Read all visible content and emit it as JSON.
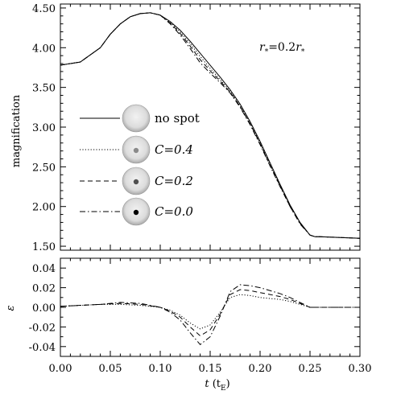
{
  "chart_data": [
    {
      "type": "line",
      "panel": "top",
      "ylabel": "magnification",
      "xlim": [
        0.0,
        0.3
      ],
      "ylim": [
        1.45,
        4.55
      ],
      "yticks": [
        "1.50",
        "2.00",
        "2.50",
        "3.00",
        "3.50",
        "4.00",
        "4.50"
      ],
      "annotation": {
        "r": "r",
        "sub": "*",
        "eq": "=0.2",
        "r2": "r",
        "sub2": "*"
      },
      "legend_placement": "left-middle",
      "legend": [
        {
          "label": "no spot",
          "style": "solid",
          "spot_color": "none"
        },
        {
          "label": "C=0.4",
          "style": "dotted",
          "spot_color": "#8a8a8a"
        },
        {
          "label": "C=0.2",
          "style": "dashed",
          "spot_color": "#505050"
        },
        {
          "label": "C=0.0",
          "style": "dashdot",
          "spot_color": "#000000"
        }
      ],
      "series": [
        {
          "style": "solid",
          "x": [
            0.0,
            0.02,
            0.04,
            0.05,
            0.06,
            0.07,
            0.08,
            0.09,
            0.1,
            0.11,
            0.12,
            0.13,
            0.14,
            0.15,
            0.16,
            0.17,
            0.18,
            0.19,
            0.2,
            0.21,
            0.22,
            0.23,
            0.24,
            0.25,
            0.255,
            0.26,
            0.28,
            0.3
          ],
          "y": [
            3.78,
            3.82,
            4.0,
            4.17,
            4.3,
            4.39,
            4.43,
            4.44,
            4.41,
            4.33,
            4.22,
            4.08,
            3.93,
            3.78,
            3.63,
            3.47,
            3.29,
            3.07,
            2.82,
            2.55,
            2.28,
            2.02,
            1.8,
            1.64,
            1.62,
            1.62,
            1.61,
            1.6
          ]
        },
        {
          "style": "dotted",
          "x": [
            0.0,
            0.02,
            0.04,
            0.05,
            0.06,
            0.07,
            0.08,
            0.09,
            0.1,
            0.11,
            0.12,
            0.13,
            0.14,
            0.15,
            0.16,
            0.17,
            0.18,
            0.19,
            0.2,
            0.21,
            0.22,
            0.23,
            0.24,
            0.25,
            0.255,
            0.26,
            0.28,
            0.3
          ],
          "y": [
            3.78,
            3.82,
            4.0,
            4.17,
            4.3,
            4.39,
            4.43,
            4.44,
            4.41,
            4.32,
            4.2,
            4.05,
            3.89,
            3.74,
            3.6,
            3.45,
            3.27,
            3.05,
            2.8,
            2.53,
            2.27,
            2.01,
            1.79,
            1.64,
            1.62,
            1.62,
            1.61,
            1.6
          ]
        },
        {
          "style": "dashed",
          "x": [
            0.0,
            0.02,
            0.04,
            0.05,
            0.06,
            0.07,
            0.08,
            0.09,
            0.1,
            0.11,
            0.12,
            0.13,
            0.14,
            0.15,
            0.16,
            0.17,
            0.18,
            0.19,
            0.2,
            0.21,
            0.22,
            0.23,
            0.24,
            0.25,
            0.255,
            0.26,
            0.28,
            0.3
          ],
          "y": [
            3.78,
            3.82,
            4.0,
            4.17,
            4.3,
            4.39,
            4.43,
            4.44,
            4.41,
            4.31,
            4.18,
            4.02,
            3.85,
            3.71,
            3.58,
            3.44,
            3.26,
            3.04,
            2.79,
            2.52,
            2.26,
            2.0,
            1.79,
            1.64,
            1.62,
            1.62,
            1.61,
            1.6
          ]
        },
        {
          "style": "dashdot",
          "x": [
            0.0,
            0.02,
            0.04,
            0.05,
            0.06,
            0.07,
            0.08,
            0.09,
            0.1,
            0.11,
            0.12,
            0.13,
            0.14,
            0.15,
            0.16,
            0.17,
            0.18,
            0.19,
            0.2,
            0.21,
            0.22,
            0.23,
            0.24,
            0.25,
            0.255,
            0.26,
            0.28,
            0.3
          ],
          "y": [
            3.78,
            3.82,
            4.0,
            4.17,
            4.3,
            4.39,
            4.43,
            4.44,
            4.41,
            4.3,
            4.16,
            3.99,
            3.81,
            3.68,
            3.56,
            3.43,
            3.25,
            3.03,
            2.78,
            2.51,
            2.25,
            2.0,
            1.78,
            1.64,
            1.62,
            1.62,
            1.61,
            1.6
          ]
        }
      ]
    },
    {
      "type": "line",
      "panel": "bottom",
      "xlabel_main": "t",
      "xlabel_unit": "(t",
      "xlabel_sub": "E",
      "xlabel_close": ")",
      "ylabel": "ε",
      "xlim": [
        0.0,
        0.3
      ],
      "ylim": [
        -0.05,
        0.05
      ],
      "xticks": [
        "0.00",
        "0.05",
        "0.10",
        "0.15",
        "0.20",
        "0.25",
        "0.30"
      ],
      "yticks": [
        "-0.04",
        "-0.02",
        "0.00",
        "0.02",
        "0.04"
      ],
      "series": [
        {
          "style": "dotted",
          "x": [
            0.0,
            0.02,
            0.04,
            0.06,
            0.08,
            0.1,
            0.11,
            0.12,
            0.13,
            0.14,
            0.15,
            0.16,
            0.17,
            0.18,
            0.19,
            0.2,
            0.21,
            0.22,
            0.23,
            0.24,
            0.25,
            0.26,
            0.28,
            0.3
          ],
          "y": [
            0.001,
            0.002,
            0.003,
            0.003,
            0.002,
            0.0,
            -0.003,
            -0.008,
            -0.016,
            -0.022,
            -0.018,
            -0.005,
            0.01,
            0.013,
            0.012,
            0.01,
            0.009,
            0.008,
            0.006,
            0.003,
            0.0,
            0.0,
            0.0,
            0.0
          ]
        },
        {
          "style": "dashed",
          "x": [
            0.0,
            0.02,
            0.04,
            0.06,
            0.08,
            0.1,
            0.11,
            0.12,
            0.13,
            0.14,
            0.15,
            0.16,
            0.17,
            0.18,
            0.19,
            0.2,
            0.21,
            0.22,
            0.23,
            0.24,
            0.25,
            0.26,
            0.28,
            0.3
          ],
          "y": [
            0.001,
            0.002,
            0.003,
            0.004,
            0.003,
            0.0,
            -0.004,
            -0.01,
            -0.02,
            -0.029,
            -0.023,
            -0.007,
            0.013,
            0.018,
            0.017,
            0.015,
            0.013,
            0.011,
            0.008,
            0.004,
            0.0,
            0.0,
            0.0,
            0.0
          ]
        },
        {
          "style": "dashdot",
          "x": [
            0.0,
            0.02,
            0.04,
            0.06,
            0.08,
            0.1,
            0.11,
            0.12,
            0.13,
            0.14,
            0.15,
            0.16,
            0.17,
            0.18,
            0.19,
            0.2,
            0.21,
            0.22,
            0.23,
            0.24,
            0.25,
            0.26,
            0.28,
            0.3
          ],
          "y": [
            0.001,
            0.002,
            0.003,
            0.005,
            0.004,
            0.0,
            -0.005,
            -0.013,
            -0.026,
            -0.038,
            -0.03,
            -0.009,
            0.016,
            0.023,
            0.022,
            0.02,
            0.017,
            0.014,
            0.01,
            0.005,
            0.0,
            0.0,
            0.0,
            0.0
          ]
        }
      ]
    }
  ]
}
